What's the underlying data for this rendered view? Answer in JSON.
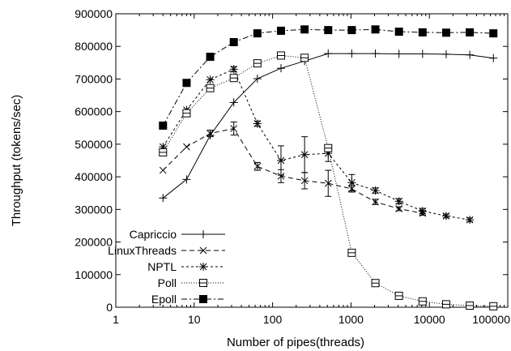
{
  "chart_data": {
    "type": "line",
    "title": "",
    "xlabel": "Number of pipes(threads)",
    "ylabel": "Throughput (tokens/sec)",
    "xscale": "log",
    "xlim": [
      1,
      100000
    ],
    "ylim": [
      0,
      900000
    ],
    "x_ticks": [
      1,
      10,
      100,
      1000,
      10000,
      100000
    ],
    "x_tick_labels": [
      "1",
      "10",
      "100",
      "1000",
      "10000",
      "100000"
    ],
    "y_ticks": [
      0,
      100000,
      200000,
      300000,
      400000,
      500000,
      600000,
      700000,
      800000,
      900000
    ],
    "y_tick_labels": [
      "0",
      "100000",
      "200000",
      "300000",
      "400000",
      "500000",
      "600000",
      "700000",
      "800000",
      "900000"
    ],
    "grid": false,
    "legend_position": "bottom-left",
    "series": [
      {
        "name": "Capriccio",
        "marker": "plus",
        "dash": "",
        "x": [
          4,
          8,
          16,
          32,
          64,
          128,
          256,
          512,
          1024,
          2048,
          4096,
          8192,
          16384,
          32768,
          65536
        ],
        "y": [
          335000,
          392000,
          527000,
          628000,
          701000,
          733000,
          755000,
          778000,
          778000,
          778000,
          777000,
          777000,
          776000,
          774000,
          764000
        ]
      },
      {
        "name": "LinuxThreads",
        "marker": "x",
        "dash": "6,4",
        "x": [
          4,
          8,
          16,
          32,
          64,
          128,
          256,
          512,
          1024,
          2048,
          4096,
          8192
        ],
        "y": [
          420000,
          492000,
          533000,
          548000,
          432000,
          402000,
          388000,
          380000,
          363000,
          323000,
          302000,
          288000
        ],
        "err": [
          0,
          0,
          10000,
          20000,
          12000,
          20000,
          25000,
          40000,
          10000,
          8000,
          6000,
          6000
        ]
      },
      {
        "name": "NPTL",
        "marker": "star",
        "dash": "3,3",
        "x": [
          4,
          8,
          16,
          32,
          64,
          128,
          256,
          512,
          1024,
          2048,
          4096,
          8192,
          16384,
          32768
        ],
        "y": [
          492000,
          605000,
          698000,
          730000,
          563000,
          450000,
          468000,
          472000,
          382000,
          358000,
          325000,
          295000,
          280000,
          268000
        ],
        "err": [
          0,
          0,
          0,
          8000,
          8000,
          45000,
          55000,
          25000,
          25000,
          8000,
          8000,
          8000,
          6000,
          6000
        ]
      },
      {
        "name": "Poll",
        "marker": "square-open",
        "dash": "1,2",
        "x": [
          4,
          8,
          16,
          32,
          64,
          128,
          256,
          512,
          1024,
          2048,
          4096,
          8192,
          16384,
          32768,
          65536
        ],
        "y": [
          475000,
          595000,
          672000,
          703000,
          748000,
          772000,
          765000,
          488000,
          167000,
          74000,
          35000,
          18000,
          9000,
          5000,
          3000
        ]
      },
      {
        "name": "Epoll",
        "marker": "square-filled",
        "dash": "7,3,2,3",
        "x": [
          4,
          8,
          16,
          32,
          64,
          128,
          256,
          512,
          1024,
          2048,
          4096,
          8192,
          16384,
          32768,
          65536
        ],
        "y": [
          557000,
          688000,
          768000,
          813000,
          840000,
          848000,
          852000,
          850000,
          850000,
          852000,
          845000,
          843000,
          842000,
          843000,
          840000
        ]
      }
    ]
  }
}
